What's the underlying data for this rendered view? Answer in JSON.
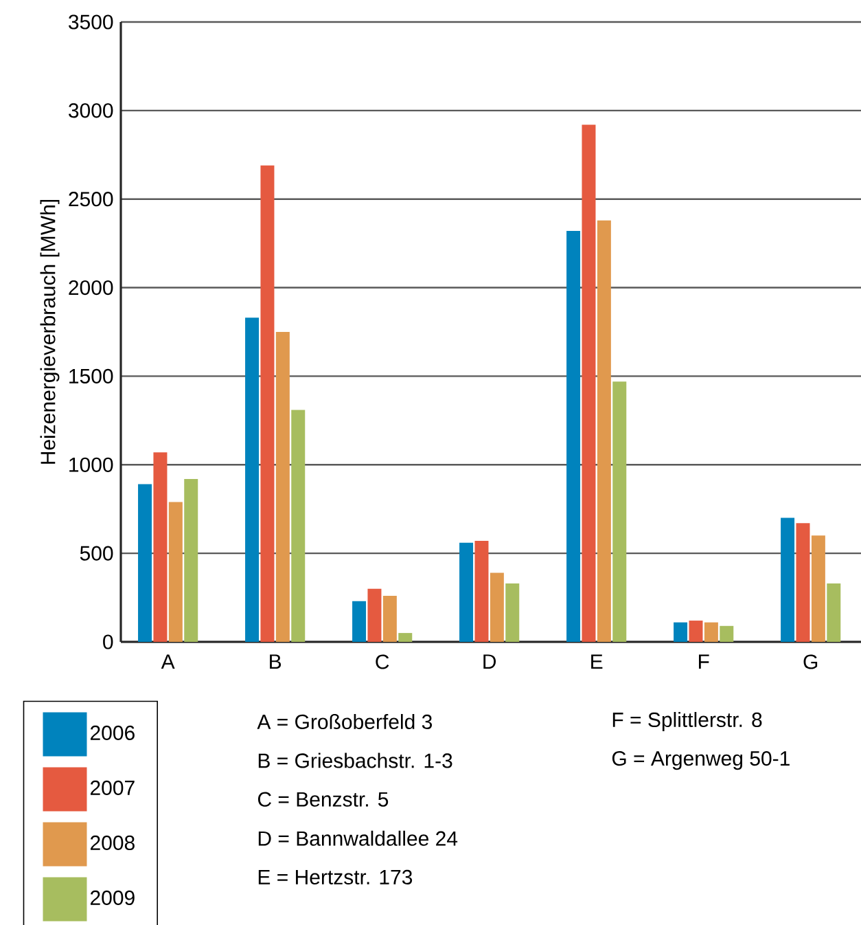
{
  "chart_data": {
    "type": "bar",
    "ylabel": "Heizenergieverbrauch [MWh]",
    "categories": [
      "A",
      "B",
      "C",
      "D",
      "E",
      "F",
      "G"
    ],
    "series": [
      {
        "name": "2006",
        "color": "#0083bd",
        "values": [
          890,
          1830,
          230,
          560,
          2320,
          110,
          700
        ]
      },
      {
        "name": "2007",
        "color": "#e55a40",
        "values": [
          1070,
          2690,
          300,
          570,
          2920,
          120,
          670
        ]
      },
      {
        "name": "2008",
        "color": "#e0994e",
        "values": [
          790,
          1750,
          260,
          390,
          2380,
          110,
          600
        ]
      },
      {
        "name": "2009",
        "color": "#a7bd5f",
        "values": [
          920,
          1310,
          50,
          330,
          1470,
          90,
          330
        ]
      }
    ],
    "ylim": [
      0,
      3500
    ],
    "yticks": [
      0,
      500,
      1000,
      1500,
      2000,
      2500,
      3000,
      3500
    ],
    "grid": "y",
    "legend": "bottom left",
    "annotations": [
      "A = Großoberfeld 3",
      "B = Griesbachstr. 1-3",
      "C = Benzstr. 5",
      "D = Bannwaldallee 24",
      "E = Hertzstr. 173",
      "F = Splittlerstr. 8",
      "G = Argenweg 50-1"
    ]
  }
}
